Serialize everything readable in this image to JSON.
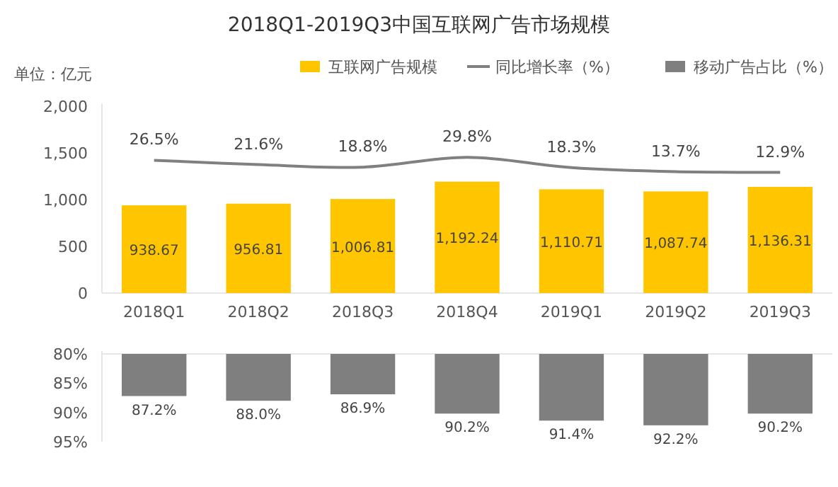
{
  "chart_data": [
    {
      "type": "bar",
      "title": "2018Q1-2019Q3中国互联网广告市场规模",
      "ylabel": "单位：亿元",
      "legend": "top",
      "grid": false,
      "categories": [
        "2018Q1",
        "2018Q2",
        "2018Q3",
        "2018Q4",
        "2019Q1",
        "2019Q2",
        "2019Q3"
      ],
      "ylim": [
        0,
        2000
      ],
      "yticks": [
        0,
        {
          "value": 500,
          "label": "500"
        },
        {
          "value": 1000,
          "label": "1,000"
        },
        {
          "value": 1500,
          "label": "1,500"
        },
        {
          "value": 2000,
          "label": "2,000"
        }
      ],
      "y2lim": [
        -122,
        87
      ],
      "series": [
        {
          "name": "互联网广告规模",
          "type": "bar",
          "color": "#ffc600",
          "values": [
            938.67,
            956.81,
            1006.81,
            1192.24,
            1110.71,
            1087.74,
            1136.31
          ],
          "value_labels": [
            "938.67",
            "956.81",
            "1,006.81",
            "1,192.24",
            "1,110.71",
            "1,087.74",
            "1,136.31"
          ]
        },
        {
          "name": "同比增长率（%）",
          "type": "line",
          "axis": "y2",
          "color": "#808080",
          "marker": "none",
          "values": [
            26.5,
            21.6,
            18.8,
            29.8,
            18.3,
            13.7,
            12.9
          ],
          "value_labels": [
            "26.5%",
            "21.6%",
            "18.8%",
            "29.8%",
            "18.3%",
            "13.7%",
            "12.9%"
          ]
        }
      ]
    },
    {
      "type": "bar",
      "legend": "top",
      "grid": false,
      "categories": [
        null,
        null,
        null,
        null,
        null,
        null,
        null
      ],
      "ylim": [
        95,
        80
      ],
      "yticks": [
        {
          "value": 80,
          "label": "80%"
        },
        {
          "value": 85,
          "label": "85%"
        },
        {
          "value": 90,
          "label": "90%"
        },
        {
          "value": 95,
          "label": "95%"
        }
      ],
      "series": [
        {
          "name": "移动广告占比（%）",
          "color": "#7f7f7f",
          "values": [
            87.2,
            88.0,
            86.9,
            90.2,
            91.4,
            92.2,
            90.2
          ],
          "value_labels": [
            "87.2%",
            "88.0%",
            "86.9%",
            "90.2%",
            "91.4%",
            "92.2%",
            "90.2%"
          ]
        }
      ]
    }
  ]
}
